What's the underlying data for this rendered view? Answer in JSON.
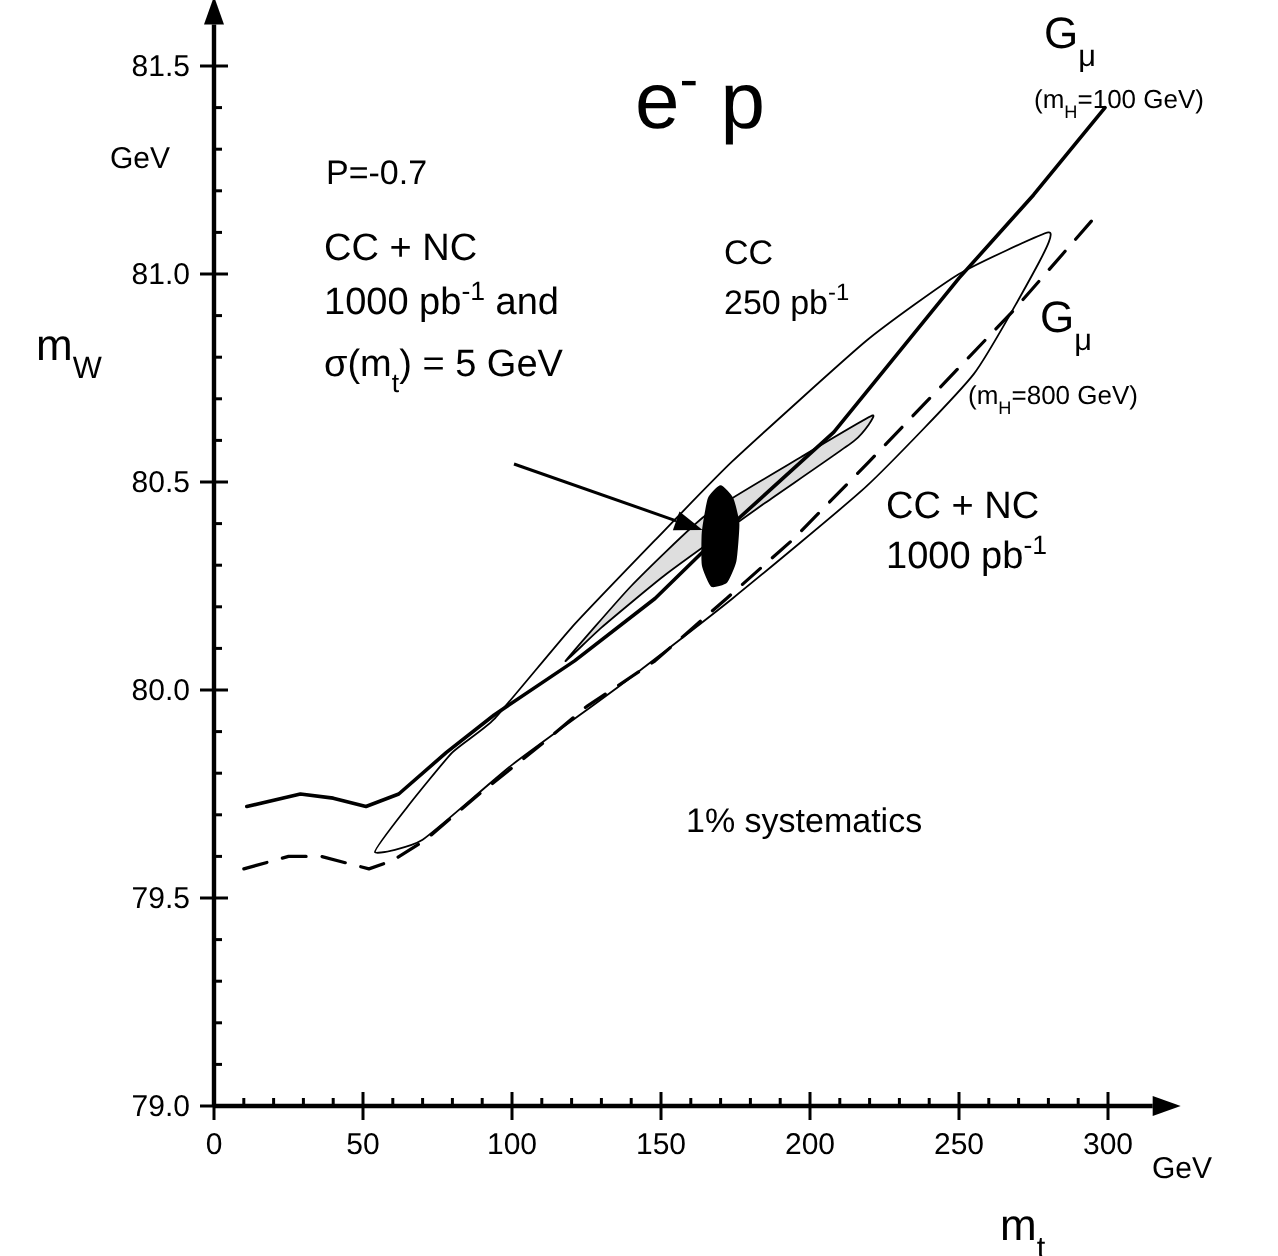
{
  "chart_data": {
    "type": "line",
    "title": "e$^{-}$ p",
    "xlabel": "m$_{t}$",
    "ylabel": "m$_{W}$",
    "xlim": [
      0,
      315
    ],
    "ylim": [
      79,
      81.6
    ],
    "xticks": [
      0,
      {
        "value": 10,
        "label": null
      },
      {
        "value": 20,
        "label": null
      },
      {
        "value": 30,
        "label": null
      },
      {
        "value": 40,
        "label": null
      },
      50,
      {
        "value": 60,
        "label": null
      },
      {
        "value": 70,
        "label": null
      },
      {
        "value": 80,
        "label": null
      },
      {
        "value": 90,
        "label": null
      },
      100,
      {
        "value": 110,
        "label": null
      },
      {
        "value": 120,
        "label": null
      },
      {
        "value": 130,
        "label": null
      },
      {
        "value": 140,
        "label": null
      },
      150,
      {
        "value": 160,
        "label": null
      },
      {
        "value": 170,
        "label": null
      },
      {
        "value": 180,
        "label": null
      },
      {
        "value": 190,
        "label": null
      },
      200,
      {
        "value": 210,
        "label": null
      },
      {
        "value": 220,
        "label": null
      },
      {
        "value": 230,
        "label": null
      },
      {
        "value": 240,
        "label": null
      },
      250,
      {
        "value": 260,
        "label": null
      },
      {
        "value": 270,
        "label": null
      },
      {
        "value": 280,
        "label": null
      },
      {
        "value": 290,
        "label": null
      },
      300
    ],
    "yticks": [
      {
        "value": 79,
        "label": "79.0"
      },
      {
        "value": 79.1,
        "label": null
      },
      {
        "value": 79.2,
        "label": null
      },
      {
        "value": 79.3,
        "label": null
      },
      {
        "value": 79.4,
        "label": null
      },
      79.5,
      {
        "value": 79.6,
        "label": null
      },
      {
        "value": 79.7,
        "label": null
      },
      {
        "value": 79.8,
        "label": null
      },
      {
        "value": 79.9,
        "label": null
      },
      {
        "value": 80,
        "label": "80.0"
      },
      {
        "value": 80.1,
        "label": null
      },
      {
        "value": 80.2,
        "label": null
      },
      {
        "value": 80.3,
        "label": null
      },
      {
        "value": 80.4,
        "label": null
      },
      80.5,
      {
        "value": 80.6,
        "label": null
      },
      {
        "value": 80.7,
        "label": null
      },
      {
        "value": 80.8,
        "label": null
      },
      {
        "value": 80.9,
        "label": null
      },
      {
        "value": 81,
        "label": "81.0"
      },
      {
        "value": 81.1,
        "label": null
      },
      {
        "value": 81.2,
        "label": null
      },
      {
        "value": 81.3,
        "label": null
      },
      {
        "value": 81.4,
        "label": null
      },
      81.5
    ],
    "grid": false,
    "marker": "none",
    "line_style": "solid",
    "series": [
      {
        "color": "#000000",
        "x": [
          11,
          29,
          40,
          51,
          62,
          78,
          94,
          121,
          148,
          168,
          208,
          250,
          275,
          299
        ],
        "values": [
          79.72,
          79.75,
          79.74,
          79.72,
          79.75,
          79.85,
          79.94,
          80.07,
          80.22,
          80.36,
          80.62,
          80.99,
          81.19,
          81.4
        ]
      },
      {
        "color": "#000000",
        "line_style": "dashed",
        "x": [
          10,
          25,
          36,
          52,
          60,
          71,
          89,
          110,
          125,
          148,
          172,
          194,
          220,
          244,
          268,
          296
        ],
        "values": [
          79.57,
          79.6,
          79.6,
          79.57,
          79.59,
          79.64,
          79.75,
          79.87,
          79.96,
          80.07,
          80.22,
          80.36,
          80.55,
          80.73,
          80.91,
          81.14
        ]
      }
    ],
    "annotations": [
      "P=-0.7",
      "GeV",
      "CC + NC 1000 pb$^{-1}$ and σ(m$_{t}$) = 5 GeV",
      "CC 250 pb$^{-1}$",
      "G$_{μ}$",
      "(m$_{H}$=100 GeV)",
      "G$_{μ}$",
      "(m$_{H}$=800 GeV)",
      "CC + NC 1000 pb$^{-1}$",
      "1% systematics",
      "GeV"
    ]
  }
}
